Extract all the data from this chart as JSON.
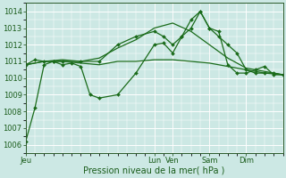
{
  "bg_color": "#cce8e4",
  "grid_color": "#ffffff",
  "line_color": "#1a6b1a",
  "marker_color": "#1a6b1a",
  "xlabel": "Pression niveau de la mer( hPa )",
  "ylim": [
    1005.5,
    1014.5
  ],
  "yticks": [
    1006,
    1007,
    1008,
    1009,
    1010,
    1011,
    1012,
    1013,
    1014
  ],
  "xlim": [
    0,
    7
  ],
  "xtick_positions": [
    0.0,
    3.5,
    4.0,
    5.0,
    6.0
  ],
  "xtick_labels": [
    "Jeu",
    "Lun",
    "Ven",
    "Sam",
    "Dim"
  ],
  "vlines_x": [
    3.5,
    4.0,
    5.0
  ],
  "vline_color": "#555555",
  "series1_x": [
    0.0,
    0.25,
    0.5,
    0.75,
    1.0,
    1.25,
    1.5,
    1.75,
    2.0,
    2.5,
    3.0,
    3.5,
    3.75,
    4.0,
    4.25,
    4.5,
    4.75,
    5.0,
    5.25,
    5.5,
    5.75,
    6.0,
    6.25,
    6.5,
    6.75,
    7.0
  ],
  "series1_y": [
    1006.2,
    1008.2,
    1010.8,
    1011.0,
    1010.8,
    1010.9,
    1010.7,
    1009.0,
    1008.8,
    1009.0,
    1010.3,
    1012.0,
    1012.1,
    1011.5,
    1012.5,
    1013.0,
    1014.0,
    1013.0,
    1012.8,
    1010.8,
    1010.3,
    1010.3,
    1010.5,
    1010.7,
    1010.2,
    1010.2
  ],
  "series2_x": [
    0.0,
    0.25,
    0.5,
    0.75,
    1.0,
    1.5,
    2.0,
    2.5,
    3.0,
    3.5,
    3.75,
    4.0,
    4.25,
    4.5,
    4.75,
    5.0,
    5.25,
    5.5,
    5.75,
    6.0,
    6.25,
    6.5,
    6.75,
    7.0
  ],
  "series2_y": [
    1010.8,
    1011.1,
    1011.0,
    1011.0,
    1011.0,
    1011.0,
    1011.0,
    1012.0,
    1012.5,
    1012.8,
    1012.5,
    1012.0,
    1012.5,
    1013.5,
    1014.0,
    1013.0,
    1012.5,
    1012.0,
    1011.5,
    1010.5,
    1010.3,
    1010.3,
    1010.3,
    1010.2
  ],
  "series3_x": [
    0.0,
    0.5,
    1.0,
    1.5,
    2.0,
    2.5,
    3.0,
    3.5,
    4.0,
    4.5,
    5.0,
    5.5,
    6.0,
    6.5,
    7.0
  ],
  "series3_y": [
    1010.8,
    1011.0,
    1011.0,
    1010.9,
    1010.8,
    1011.0,
    1011.0,
    1011.1,
    1011.1,
    1011.0,
    1010.9,
    1010.7,
    1010.5,
    1010.3,
    1010.2
  ],
  "series4_x": [
    0.0,
    0.5,
    1.0,
    1.5,
    2.0,
    2.5,
    3.0,
    3.5,
    4.0,
    4.5,
    5.0,
    5.5,
    6.0,
    6.5,
    7.0
  ],
  "series4_y": [
    1010.8,
    1011.0,
    1011.1,
    1011.0,
    1011.2,
    1011.8,
    1012.3,
    1013.0,
    1013.3,
    1012.8,
    1012.0,
    1011.2,
    1010.6,
    1010.4,
    1010.2
  ]
}
